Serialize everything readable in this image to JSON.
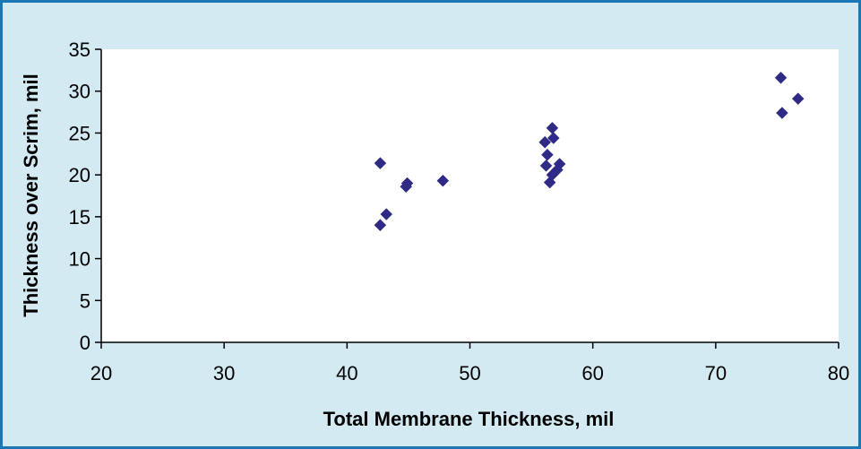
{
  "chart_data": {
    "type": "scatter",
    "title": "",
    "xlabel": "Total Membrane Thickness, mil",
    "ylabel": "Thickness over Scrim, mil",
    "xlim": [
      20,
      80
    ],
    "ylim": [
      0,
      35
    ],
    "xticks": [
      20,
      30,
      40,
      50,
      60,
      70,
      80
    ],
    "yticks": [
      0,
      5,
      10,
      15,
      20,
      25,
      30,
      35
    ],
    "grid": false,
    "legend": "none",
    "marker": "diamond",
    "colors": {
      "marker": "#2e2a86",
      "plot_background": "#ffffff",
      "chart_background": "#d3eaf3",
      "frame_border": "#1b78b4",
      "axis": "#000000"
    },
    "series": [
      {
        "points": [
          {
            "x": 42.7,
            "y": 21.4
          },
          {
            "x": 42.7,
            "y": 14.0
          },
          {
            "x": 43.2,
            "y": 15.3
          },
          {
            "x": 44.8,
            "y": 18.6
          },
          {
            "x": 44.9,
            "y": 19.0
          },
          {
            "x": 47.8,
            "y": 19.3
          },
          {
            "x": 56.1,
            "y": 23.9
          },
          {
            "x": 56.3,
            "y": 22.4
          },
          {
            "x": 56.2,
            "y": 21.1
          },
          {
            "x": 56.5,
            "y": 19.1
          },
          {
            "x": 56.7,
            "y": 20.0
          },
          {
            "x": 56.7,
            "y": 25.6
          },
          {
            "x": 56.8,
            "y": 24.4
          },
          {
            "x": 57.1,
            "y": 20.6
          },
          {
            "x": 57.3,
            "y": 21.3
          },
          {
            "x": 75.3,
            "y": 31.6
          },
          {
            "x": 75.4,
            "y": 27.4
          },
          {
            "x": 76.7,
            "y": 29.1
          }
        ]
      }
    ]
  }
}
